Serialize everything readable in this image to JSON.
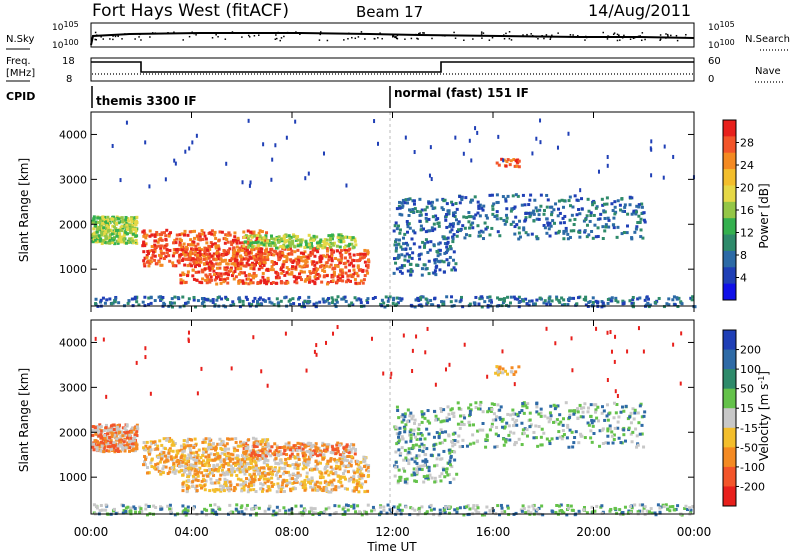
{
  "header": {
    "station": "Fort Hays West (fitACF)",
    "beam": "Beam 17",
    "date": "14/Aug/2011"
  },
  "strips": {
    "nsky_label": "N.Sky",
    "nsky_ticks": [
      "10^5",
      "10^0"
    ],
    "nsky_right_ticks": [
      "10^5",
      "10^0"
    ],
    "nsearch_label": "N.Search",
    "freq_label": "Freq.",
    "freq_unit": "[MHz]",
    "freq_ticks": [
      "18",
      "8"
    ],
    "nave_ticks": [
      "60",
      "0"
    ],
    "nave_label": "Nave",
    "cpid_label": "CPID",
    "cpid_modes": [
      "themis 3300 IF",
      "normal (fast) 151 IF"
    ]
  },
  "chart_data": [
    {
      "type": "heatmap",
      "name": "power",
      "ylabel": "Slant Range [km]",
      "yticks": [
        "4000",
        "3000",
        "2000",
        "1000"
      ],
      "ylim": [
        180,
        4500
      ],
      "xlim": [
        0,
        24
      ],
      "colorbar": {
        "label": "Power [dB]",
        "ticks": [
          "28",
          "24",
          "20",
          "16",
          "12",
          "8",
          "4"
        ],
        "colors": [
          "#e8201c",
          "#f3552a",
          "#f48a22",
          "#f3be2c",
          "#e6d846",
          "#94c646",
          "#34b04e",
          "#2e8a6a",
          "#2c6aa6",
          "#1f3fb6",
          "#1010e8"
        ]
      }
    },
    {
      "type": "heatmap",
      "name": "velocity",
      "ylabel": "Slant Range [km]",
      "yticks": [
        "4000",
        "3000",
        "2000",
        "1000"
      ],
      "ylim": [
        180,
        4500
      ],
      "xlim": [
        0,
        24
      ],
      "colorbar": {
        "label": "Velocity [m s",
        "label_sup": "-1",
        "label_end": "]",
        "ticks": [
          "200",
          "100",
          "50",
          "15",
          "-15",
          "-50",
          "-100",
          "-200"
        ],
        "colors": [
          "#1f3fb6",
          "#2e6aa6",
          "#2e8a6a",
          "#64c24a",
          "#c8c8c8",
          "#f3be2c",
          "#f48a22",
          "#f3552a",
          "#e8201c"
        ]
      },
      "xlabel": "Time UT",
      "xticks": [
        "00:00",
        "04:00",
        "08:00",
        "12:00",
        "16:00",
        "20:00",
        "00:00"
      ]
    }
  ]
}
